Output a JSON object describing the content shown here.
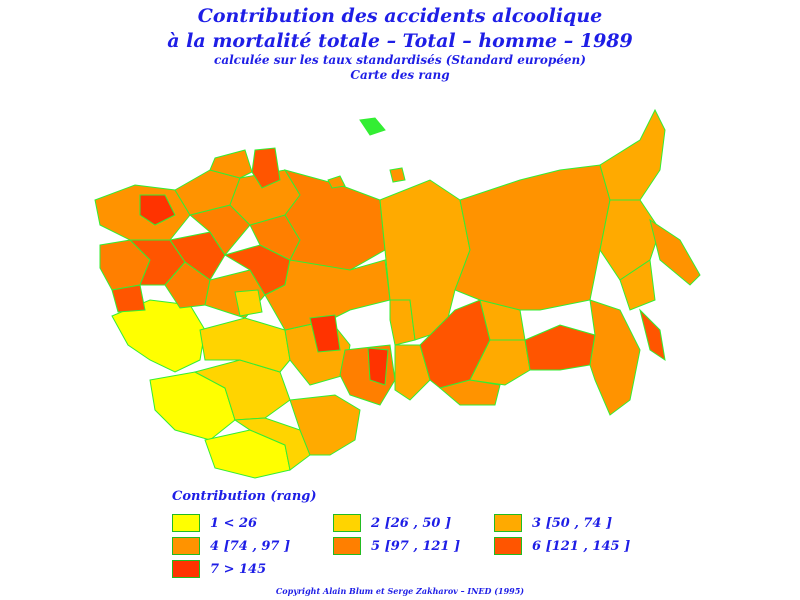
{
  "title": {
    "line1": "Contribution des accidents alcoolique",
    "line2": "à la mortalité totale – Total – homme – 1989",
    "line3": "calculée sur les taux standardisés (Standard européen)",
    "line4": "Carte des rang"
  },
  "legend": {
    "title": "Contribution (rang)",
    "items": [
      {
        "label": "1  <  26",
        "color": "#ffff00"
      },
      {
        "label": "2  [26  ,  50  ]",
        "color": "#ffd400"
      },
      {
        "label": "3  [50  ,  74  ]",
        "color": "#ffaa00"
      },
      {
        "label": "4  [74  ,  97  ]",
        "color": "#ff9300"
      },
      {
        "label": "5  [97  ,  121  ]",
        "color": "#ff7f00"
      },
      {
        "label": "6  [121  ,  145  ]",
        "color": "#ff5500"
      },
      {
        "label": "7  >  145",
        "color": "#ff3300"
      }
    ]
  },
  "border_color": "#33ee33",
  "copyright": "Copyright Alain Blum et Serge Zakharov – INED (1995)"
}
